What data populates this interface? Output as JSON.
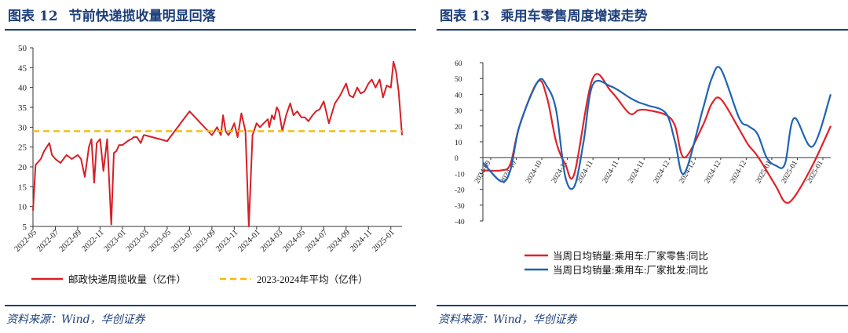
{
  "left": {
    "figure_label": "图表",
    "figure_number": "12",
    "title": "节前快递揽收量明显回落",
    "source": "资料来源：Wind，华创证券",
    "colors": {
      "series1": "#d71f26",
      "series2": "#f5b800"
    },
    "chart_data": {
      "type": "line",
      "ylim": [
        5,
        50
      ],
      "yticks": [
        5,
        10,
        15,
        20,
        25,
        30,
        35,
        40,
        45,
        50
      ],
      "x_range": [
        "2022-05",
        "2025-02"
      ],
      "xtick_labels": [
        "2022-05",
        "2022-07",
        "2022-09",
        "2022-11",
        "2023-01",
        "2023-03",
        "2023-05",
        "2023-07",
        "2023-09",
        "2023-11",
        "2024-01",
        "2024-03",
        "2024-05",
        "2024-07",
        "2024-09",
        "2024-11",
        "2025-01"
      ],
      "grid": false,
      "legend_position": "bottom",
      "series": [
        {
          "name": "邮政快递周揽收量（亿件）",
          "style": "solid",
          "x": [
            "2022-05",
            "2022-05-08",
            "2022-05-22",
            "2022-06",
            "2022-06-15",
            "2022-06-22",
            "2022-07",
            "2022-07-15",
            "2022-08",
            "2022-08-15",
            "2022-09",
            "2022-09-10",
            "2022-09-20",
            "2022-10",
            "2022-10-08",
            "2022-10-15",
            "2022-10-22",
            "2022-11",
            "2022-11-10",
            "2022-11-20",
            "2022-12",
            "2022-12-08",
            "2022-12-15",
            "2022-12-22",
            "2023-01",
            "2023-01-08",
            "2023-01-15",
            "2023-01-20",
            "2023-01-25",
            "2023-01-28",
            "2023-02",
            "2023-02-10",
            "2023-02-20",
            "2023-02-28",
            "2023-03",
            "2023-05",
            "2023-07",
            "2023-09",
            "2023-09-15",
            "2023-09-25",
            "2023-10",
            "2023-10-08",
            "2023-10-15",
            "2023-10-22",
            "2023-11",
            "2023-11-10",
            "2023-11-20",
            "2023-12",
            "2023-12-10",
            "2023-12-20",
            "2024-01",
            "2024-01-10",
            "2024-01-20",
            "2024-02",
            "2024-02-05",
            "2024-02-12",
            "2024-02-18",
            "2024-02-25",
            "2024-03",
            "2024-03-10",
            "2024-03-20",
            "2024-04",
            "2024-04-10",
            "2024-04-20",
            "2024-05",
            "2024-05-10",
            "2024-05-20",
            "2024-06",
            "2024-06-10",
            "2024-06-20",
            "2024-07",
            "2024-07-15",
            "2024-08",
            "2024-08-15",
            "2024-09",
            "2024-09-10",
            "2024-09-20",
            "2024-10",
            "2024-10-10",
            "2024-10-20",
            "2024-11",
            "2024-11-10",
            "2024-11-20",
            "2024-12",
            "2024-12-10",
            "2024-12-20",
            "2025-01",
            "2025-01-08",
            "2025-01-15",
            "2025-01-22",
            "2025-02"
          ],
          "y": [
            9,
            20.5,
            22,
            24,
            26,
            23,
            22,
            21,
            23,
            22,
            23,
            22,
            17.5,
            25,
            27,
            16,
            26,
            27,
            19,
            27,
            5.5,
            23.5,
            24,
            25.5,
            25.5,
            26,
            26.5,
            26.8,
            27,
            27.2,
            27.5,
            27.5,
            26,
            28,
            28,
            26.5,
            34,
            28,
            30,
            28,
            33,
            29,
            28,
            29,
            31,
            27.5,
            33.5,
            29,
            5,
            28,
            31,
            30,
            31,
            32,
            30,
            33,
            32,
            35,
            34,
            29,
            33,
            36,
            33,
            34,
            32.5,
            32.5,
            31.5,
            33,
            34,
            34.5,
            36.5,
            31,
            36,
            38,
            41,
            38,
            37.5,
            40,
            38.5,
            39,
            41,
            42,
            40,
            42,
            37.5,
            40.5,
            40,
            46.5,
            44,
            39,
            28
          ]
        },
        {
          "name": "2023-2024年平均（亿件）",
          "style": "dashed",
          "x": [
            "2022-05",
            "2025-02"
          ],
          "y": [
            29,
            29
          ]
        }
      ]
    }
  },
  "right": {
    "figure_label": "图表",
    "figure_number": "13",
    "title": "乘用车零售周度增速走势",
    "source": "资料来源：Wind，华创证券",
    "colors": {
      "series1": "#e1222a",
      "series2": "#1f63b4"
    },
    "chart_data": {
      "type": "line",
      "ylim": [
        -40,
        60
      ],
      "yticks": [
        -40,
        -30,
        -20,
        -10,
        0,
        10,
        20,
        30,
        40,
        50,
        60
      ],
      "xtick_labels": [
        "2024-09",
        "2024-10",
        "2024-10",
        "2024-11",
        "2024-11",
        "2024-11",
        "2024-11",
        "2024-12",
        "2024-12",
        "2024-12",
        "2024-12",
        "2025-01",
        "2025-01",
        "2025-01"
      ],
      "grid": false,
      "legend_position": "bottom",
      "series": [
        {
          "name": "当周日均销量:乘用车:厂家零售:同比",
          "x": [
            0,
            1,
            1.5,
            2,
            3,
            3.5,
            4,
            4.5,
            5,
            6,
            7,
            8,
            8.5,
            9,
            10,
            10.5,
            11,
            12,
            12.5,
            13,
            14,
            14.5,
            15,
            16,
            16.5,
            17,
            18,
            19
          ],
          "y": [
            -8,
            -8,
            -4,
            20,
            48,
            38,
            10,
            -4,
            -10,
            50,
            42,
            28,
            30,
            30,
            27,
            20,
            0,
            20,
            34,
            37,
            18,
            8,
            1,
            -18,
            -28,
            -25,
            -5,
            20
          ]
        },
        {
          "name": "当周日均销量:乘用车:厂家批发:同比",
          "x": [
            0,
            1,
            1.5,
            2,
            3,
            3.5,
            4,
            4.5,
            5,
            5.5,
            6,
            7,
            8,
            8.5,
            9,
            10,
            10.5,
            11,
            12,
            12.5,
            13,
            14,
            14.5,
            15,
            15.5,
            16,
            16.5,
            17,
            18,
            19
          ],
          "y": [
            -3,
            -15,
            -8,
            20,
            48,
            45,
            30,
            -12,
            -18,
            10,
            46,
            45,
            38,
            35,
            33,
            28,
            10,
            -10,
            30,
            50,
            56,
            25,
            20,
            15,
            0,
            -5,
            -4,
            25,
            7,
            40
          ]
        }
      ]
    }
  }
}
